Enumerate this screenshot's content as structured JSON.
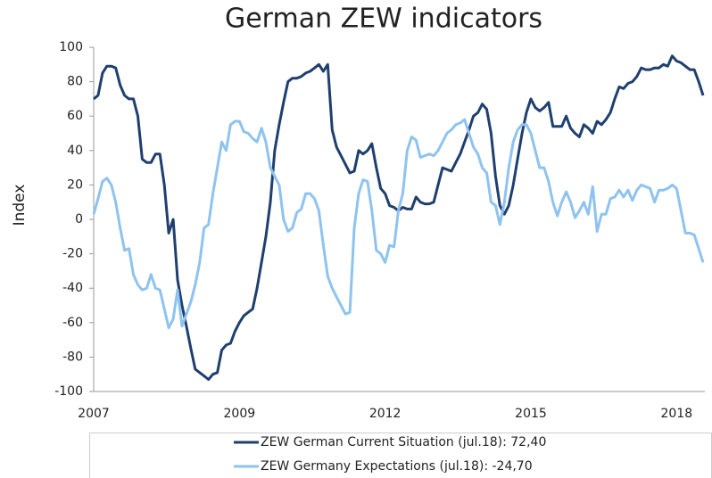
{
  "chart_data": {
    "type": "line",
    "title": "German ZEW indicators",
    "y_label": "Index",
    "categories": [
      "2007",
      null,
      null,
      null,
      null,
      null,
      null,
      null,
      null,
      null,
      null,
      null,
      null,
      null,
      null,
      null,
      null,
      null,
      null,
      null,
      null,
      null,
      null,
      null,
      null,
      null,
      null,
      null,
      null,
      null,
      null,
      null,
      null,
      "2009",
      null,
      null,
      null,
      null,
      null,
      null,
      null,
      null,
      null,
      null,
      null,
      null,
      null,
      null,
      null,
      null,
      null,
      null,
      null,
      null,
      null,
      null,
      null,
      null,
      null,
      null,
      null,
      null,
      null,
      null,
      null,
      null,
      "2012",
      null,
      null,
      null,
      null,
      null,
      null,
      null,
      null,
      null,
      null,
      null,
      null,
      null,
      null,
      null,
      null,
      null,
      null,
      null,
      null,
      null,
      null,
      null,
      null,
      null,
      null,
      null,
      null,
      null,
      null,
      null,
      null,
      "2015",
      null,
      null,
      null,
      null,
      null,
      null,
      null,
      null,
      null,
      null,
      null,
      null,
      null,
      null,
      null,
      null,
      null,
      null,
      null,
      null,
      null,
      null,
      null,
      null,
      null,
      null,
      null,
      null,
      null,
      null,
      null,
      null,
      "2018",
      null,
      null,
      null,
      null,
      null,
      null
    ],
    "series": [
      {
        "name": "ZEW German Current Situation (jul.18): 72,40",
        "color": "#1f3f6e",
        "values": [
          70,
          72,
          85,
          89,
          89,
          88,
          78,
          72,
          70,
          70,
          60,
          35,
          33,
          33,
          38,
          38,
          20,
          -8,
          0,
          -35,
          -50,
          -62,
          -75,
          -87,
          -89,
          -91,
          -93,
          -90,
          -89,
          -76,
          -73,
          -72,
          -65,
          -60,
          -56,
          -54,
          -52,
          -40,
          -25,
          -10,
          10,
          40,
          55,
          68,
          80,
          82,
          82,
          83,
          85,
          86,
          88,
          90,
          86,
          90,
          52,
          42,
          37,
          32,
          27,
          28,
          40,
          38,
          40,
          44,
          30,
          18,
          15,
          8,
          7,
          5,
          7,
          6,
          6,
          13,
          10,
          9,
          9,
          10,
          20,
          30,
          29,
          28,
          33,
          38,
          45,
          52,
          60,
          62,
          67,
          64,
          50,
          25,
          8,
          3,
          8,
          20,
          35,
          50,
          62,
          70,
          65,
          63,
          65,
          68,
          54,
          54,
          54,
          60,
          53,
          50,
          48,
          55,
          53,
          50,
          57,
          55,
          58,
          62,
          70,
          77,
          76,
          79,
          80,
          83,
          88,
          87,
          87,
          88,
          88,
          90,
          89,
          95,
          92,
          91,
          89,
          87,
          87,
          80,
          72
        ]
      },
      {
        "name": "ZEW Germany Expectations  (jul.18): -24,70",
        "color": "#8fc3ef",
        "values": [
          3,
          12,
          22,
          24,
          20,
          10,
          -5,
          -18,
          -17,
          -32,
          -38,
          -41,
          -40,
          -32,
          -40,
          -41,
          -52,
          -63,
          -58,
          -41,
          -62,
          -55,
          -48,
          -38,
          -25,
          -5,
          -3,
          15,
          30,
          45,
          40,
          55,
          57,
          57,
          51,
          50,
          47,
          45,
          53,
          45,
          30,
          25,
          20,
          0,
          -7,
          -5,
          4,
          6,
          15,
          15,
          12,
          5,
          -15,
          -33,
          -40,
          -45,
          -50,
          -55,
          -54,
          -5,
          15,
          23,
          22,
          5,
          -18,
          -20,
          -25,
          -15,
          -16,
          5,
          15,
          40,
          48,
          46,
          36,
          37,
          38,
          37,
          40,
          45,
          50,
          52,
          55,
          56,
          58,
          50,
          42,
          38,
          30,
          27,
          10,
          8,
          -3,
          10,
          30,
          45,
          52,
          55,
          55,
          50,
          40,
          30,
          30,
          22,
          10,
          2,
          10,
          16,
          10,
          1,
          5,
          10,
          3,
          19,
          -7,
          3,
          3,
          12,
          13,
          17,
          13,
          17,
          11,
          17,
          20,
          19,
          18,
          10,
          17,
          17,
          18,
          20,
          18,
          5,
          -8,
          -8,
          -9,
          -17,
          -25
        ]
      }
    ],
    "ylim": [
      -100,
      100
    ],
    "yticks": [
      -100,
      -80,
      -60,
      -40,
      -20,
      0,
      20,
      40,
      60,
      80,
      100
    ],
    "grid": false,
    "legend": "bottom"
  }
}
